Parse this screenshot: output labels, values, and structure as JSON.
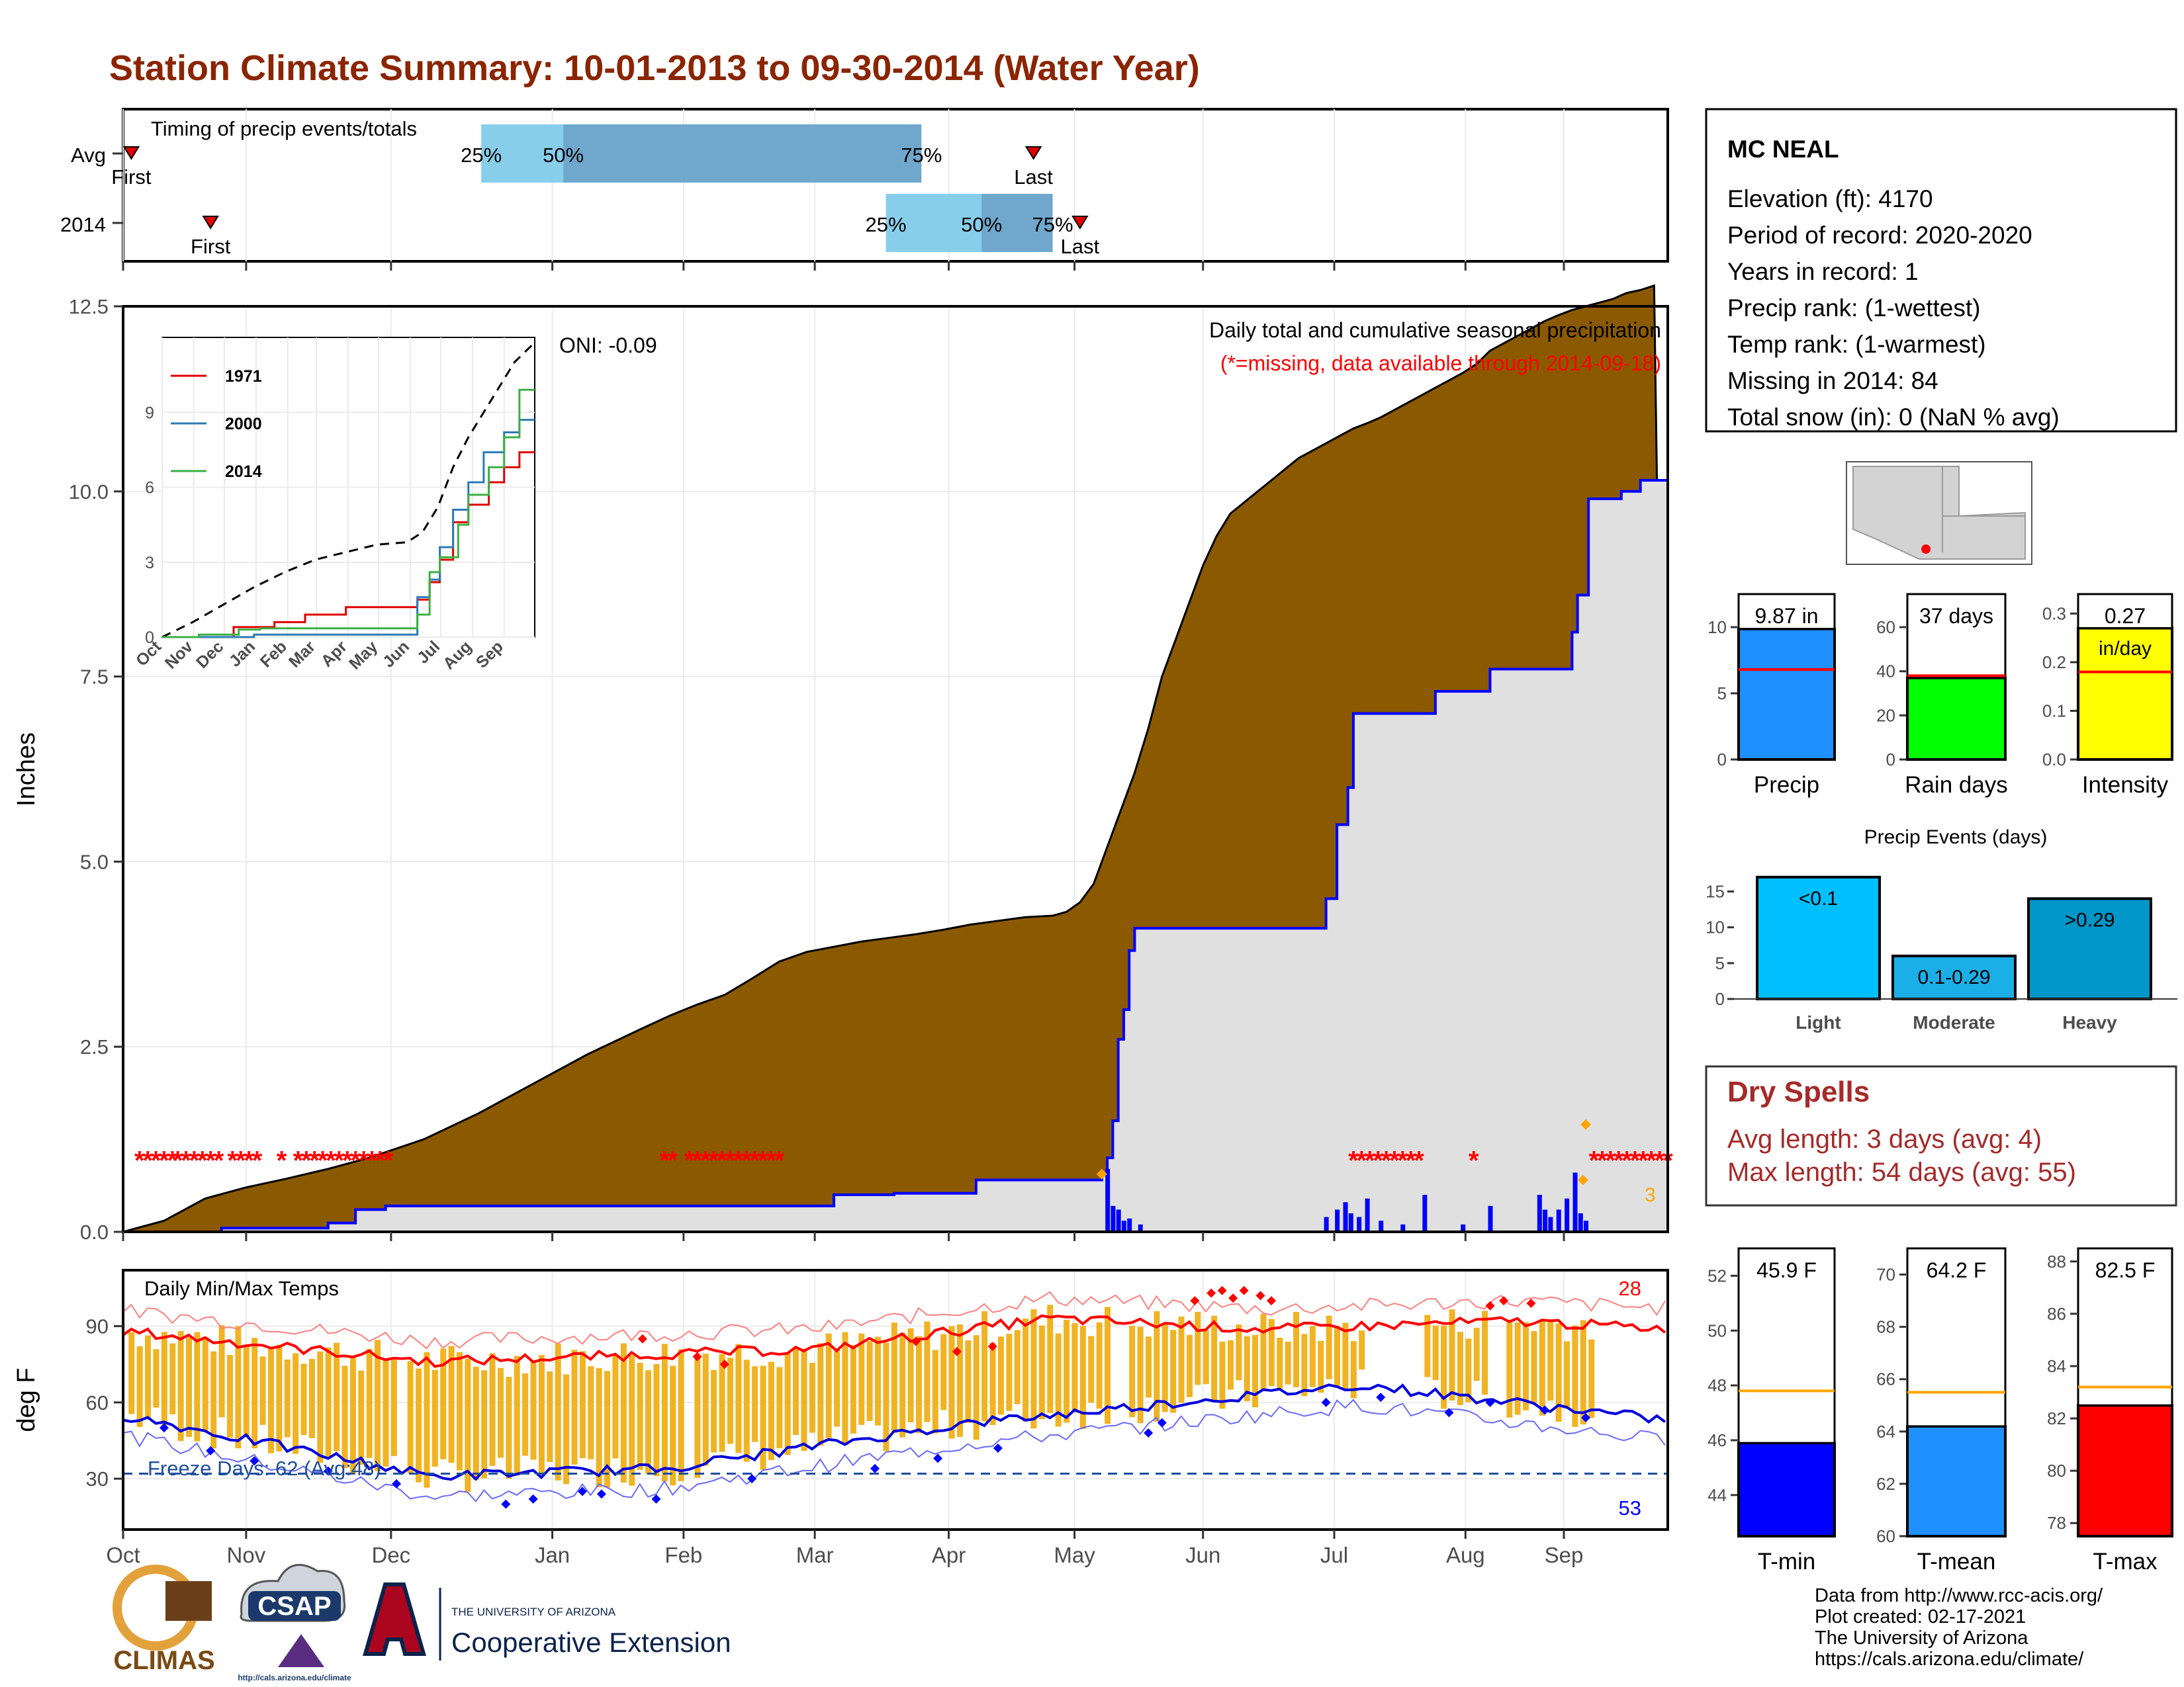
{
  "title": "Station Climate Summary: 10-01-2013 to 09-30-2014 (Water Year)",
  "timing": {
    "label": "Timing of precip events/totals",
    "rows": [
      {
        "label": "Avg",
        "first_doy": 3,
        "first_label": "First",
        "q25": 131,
        "q50": 161,
        "q75": 292,
        "last_doy": 333,
        "last_label": "Last"
      },
      {
        "label": "2014",
        "first_doy": 32,
        "first_label": "First",
        "q25": 279,
        "q50": 314,
        "q75": 340,
        "last_doy": 350,
        "last_label": "Last"
      }
    ],
    "q_labels": [
      "25%",
      "50%",
      "75%"
    ],
    "colors": {
      "light": "#87CEEB",
      "dark": "#6FA7CD",
      "marker": "#E00000"
    }
  },
  "precip_panel": {
    "ylabel": "Inches",
    "yticks": [
      "0.0",
      "2.5",
      "5.0",
      "7.5",
      "10.0",
      "12.5"
    ],
    "ymax": 12.5,
    "caption": "Daily total and cumulative seasonal precipitation",
    "missing_note": "(*=missing, data available through 2014-09-18)",
    "oni": "ONI: -0.09",
    "missing_count": "3",
    "avg_cum": [
      [
        0,
        0
      ],
      [
        15,
        0.15
      ],
      [
        30,
        0.45
      ],
      [
        45,
        0.6
      ],
      [
        60,
        0.72
      ],
      [
        75,
        0.85
      ],
      [
        90,
        1.0
      ],
      [
        110,
        1.25
      ],
      [
        130,
        1.6
      ],
      [
        150,
        2.0
      ],
      [
        170,
        2.4
      ],
      [
        190,
        2.75
      ],
      [
        200,
        2.92
      ],
      [
        210,
        3.07
      ],
      [
        220,
        3.2
      ],
      [
        230,
        3.42
      ],
      [
        240,
        3.65
      ],
      [
        250,
        3.78
      ],
      [
        260,
        3.85
      ],
      [
        270,
        3.92
      ],
      [
        280,
        3.97
      ],
      [
        290,
        4.02
      ],
      [
        300,
        4.08
      ],
      [
        310,
        4.15
      ],
      [
        320,
        4.2
      ],
      [
        330,
        4.25
      ],
      [
        340,
        4.27
      ],
      [
        345,
        4.32
      ],
      [
        350,
        4.45
      ],
      [
        355,
        4.7
      ],
      [
        360,
        5.2
      ],
      [
        365,
        5.7
      ],
      [
        370,
        6.2
      ],
      [
        375,
        6.8
      ],
      [
        380,
        7.5
      ],
      [
        385,
        8.0
      ],
      [
        390,
        8.5
      ],
      [
        395,
        9.0
      ],
      [
        400,
        9.4
      ],
      [
        405,
        9.7
      ],
      [
        410,
        9.85
      ],
      [
        415,
        10.0
      ],
      [
        420,
        10.15
      ],
      [
        425,
        10.3
      ],
      [
        430,
        10.45
      ],
      [
        435,
        10.55
      ],
      [
        440,
        10.65
      ],
      [
        445,
        10.75
      ],
      [
        450,
        10.85
      ],
      [
        455,
        10.92
      ],
      [
        460,
        11.0
      ],
      [
        465,
        11.1
      ],
      [
        470,
        11.2
      ],
      [
        475,
        11.3
      ],
      [
        480,
        11.4
      ],
      [
        485,
        11.5
      ],
      [
        490,
        11.6
      ],
      [
        495,
        11.72
      ],
      [
        500,
        11.9
      ],
      [
        505,
        12.0
      ],
      [
        510,
        12.1
      ],
      [
        515,
        12.2
      ],
      [
        520,
        12.3
      ],
      [
        525,
        12.38
      ],
      [
        530,
        12.45
      ],
      [
        535,
        12.5
      ],
      [
        540,
        12.55
      ],
      [
        545,
        12.6
      ],
      [
        548,
        12.65
      ],
      [
        550,
        12.68
      ],
      [
        555,
        12.72
      ],
      [
        560,
        12.78
      ]
    ],
    "cum_2014": [
      [
        0,
        0
      ],
      [
        36,
        0
      ],
      [
        36,
        0.05
      ],
      [
        75,
        0.05
      ],
      [
        75,
        0.12
      ],
      [
        85,
        0.12
      ],
      [
        85,
        0.3
      ],
      [
        96,
        0.3
      ],
      [
        96,
        0.35
      ],
      [
        260,
        0.35
      ],
      [
        260,
        0.5
      ],
      [
        282,
        0.5
      ],
      [
        282,
        0.52
      ],
      [
        312,
        0.52
      ],
      [
        312,
        0.7
      ],
      [
        358,
        0.7
      ],
      [
        358,
        0.78
      ],
      [
        360,
        0.78
      ],
      [
        360,
        1.0
      ],
      [
        362,
        1.0
      ],
      [
        362,
        1.5
      ],
      [
        364,
        1.5
      ],
      [
        364,
        2.6
      ],
      [
        366,
        2.6
      ],
      [
        366,
        3.0
      ],
      [
        368,
        3.0
      ],
      [
        368,
        3.8
      ],
      [
        370,
        3.8
      ],
      [
        370,
        4.1
      ],
      [
        440,
        4.1
      ],
      [
        440,
        4.5
      ],
      [
        444,
        4.5
      ],
      [
        444,
        5.5
      ],
      [
        448,
        5.5
      ],
      [
        448,
        6.0
      ],
      [
        450,
        6.0
      ],
      [
        450,
        7.0
      ],
      [
        480,
        7.0
      ],
      [
        480,
        7.3
      ],
      [
        500,
        7.3
      ],
      [
        500,
        7.6
      ],
      [
        530,
        7.6
      ],
      [
        530,
        8.1
      ],
      [
        532,
        8.1
      ],
      [
        532,
        8.6
      ],
      [
        536,
        8.6
      ],
      [
        536,
        9.9
      ],
      [
        548,
        9.9
      ],
      [
        548,
        10.0
      ],
      [
        555,
        10.0
      ],
      [
        555,
        10.15
      ],
      [
        565,
        10.15
      ]
    ],
    "daily_bars": [
      [
        360,
        0.85
      ],
      [
        362,
        0.35
      ],
      [
        364,
        0.3
      ],
      [
        366,
        0.15
      ],
      [
        368,
        0.18
      ],
      [
        372,
        0.1
      ],
      [
        440,
        0.2
      ],
      [
        444,
        0.3
      ],
      [
        447,
        0.4
      ],
      [
        449,
        0.25
      ],
      [
        452,
        0.2
      ],
      [
        455,
        0.45
      ],
      [
        460,
        0.15
      ],
      [
        468,
        0.1
      ],
      [
        476,
        0.5
      ],
      [
        490,
        0.1
      ],
      [
        500,
        0.35
      ],
      [
        518,
        0.5
      ],
      [
        520,
        0.3
      ],
      [
        522,
        0.2
      ],
      [
        525,
        0.3
      ],
      [
        528,
        0.45
      ],
      [
        531,
        0.8
      ],
      [
        533,
        0.25
      ],
      [
        535,
        0.15
      ]
    ]
  },
  "inset": {
    "legend": [
      {
        "name": "1971",
        "color": "#E00000"
      },
      {
        "name": "2000",
        "color": "#2C7BB6"
      },
      {
        "name": "2014",
        "color": "#3CB043"
      }
    ],
    "yticks": [
      "0",
      "3",
      "6",
      "9"
    ],
    "months": [
      "Oct",
      "Nov",
      "Dec",
      "Jan",
      "Feb",
      "Mar",
      "Apr",
      "May",
      "Jun",
      "Jul",
      "Aug",
      "Sep"
    ]
  },
  "temp_panel": {
    "ylabel": "deg F",
    "title": "Daily Min/Max Temps",
    "yticks": [
      "30",
      "60",
      "90"
    ],
    "freeze_label": "Freeze Days: 62 (Avg:48)",
    "hot_count": "28",
    "cold_count": "53",
    "freeze_line": 32
  },
  "months": [
    "Oct",
    "Nov",
    "Dec",
    "Jan",
    "Feb",
    "Mar",
    "Apr",
    "May",
    "Jun",
    "Jul",
    "Aug",
    "Sep"
  ],
  "station": {
    "name": "MC NEAL",
    "lines": [
      "Elevation (ft): 4170",
      "Period of record: 2020-2020",
      "Years in record: 1",
      "Precip rank:  (1-wettest)",
      "Temp rank:  (1-warmest)",
      "Missing in 2014: 84",
      "Total snow (in): 0 (NaN % avg)"
    ]
  },
  "small_bars": [
    {
      "name": "Precip",
      "value_label": "9.87 in",
      "value": 9.87,
      "avg": 6.8,
      "ymin": 0,
      "ymax": 12.5,
      "ticks": [
        "0",
        "5",
        "10"
      ],
      "color": "#1E90FF"
    },
    {
      "name": "Rain days",
      "value_label": "37 days",
      "value": 37,
      "avg": 38,
      "ymin": 0,
      "ymax": 75,
      "ticks": [
        "0",
        "20",
        "40",
        "60"
      ],
      "color": "#00FF00"
    },
    {
      "name": "Intensity",
      "value_label": "0.27",
      "unit": "in/day",
      "value": 0.27,
      "avg": 0.18,
      "ymin": 0,
      "ymax": 0.34,
      "ticks": [
        "0.0",
        "0.1",
        "0.2",
        "0.3"
      ],
      "color": "#FFFF00"
    }
  ],
  "events": {
    "title": "Precip Events (days)",
    "ticks": [
      "0",
      "5",
      "10",
      "15"
    ],
    "bars": [
      {
        "cat": "Light",
        "label": "<0.1",
        "value": 17
      },
      {
        "cat": "Moderate",
        "label": "0.1-0.29",
        "value": 6
      },
      {
        "cat": "Heavy",
        "label": ">0.29",
        "value": 14
      }
    ],
    "colors": [
      "#00BFFF",
      "#1CAEE6",
      "#0096C7"
    ]
  },
  "dry_spells": {
    "title": "Dry Spells",
    "avg_line": "Avg length: 3 days (avg: 4)",
    "max_line": "Max length: 54 days (avg: 55)"
  },
  "temp_bars": [
    {
      "name": "T-min",
      "value_label": "45.9 F",
      "value": 45.9,
      "avg": 47.8,
      "ymin": 42.5,
      "ymax": 53,
      "ticks": [
        "44",
        "46",
        "48",
        "50",
        "52"
      ],
      "color": "#0000FF"
    },
    {
      "name": "T-mean",
      "value_label": "64.2 F",
      "value": 64.2,
      "avg": 65.5,
      "ymin": 60,
      "ymax": 71,
      "ticks": [
        "60",
        "62",
        "64",
        "66",
        "68",
        "70"
      ],
      "color": "#1E90FF"
    },
    {
      "name": "T-max",
      "value_label": "82.5 F",
      "value": 82.5,
      "avg": 83.2,
      "ymin": 77.5,
      "ymax": 88.5,
      "ticks": [
        "78",
        "80",
        "82",
        "84",
        "86",
        "88"
      ],
      "color": "#FF0000"
    }
  ],
  "footer": {
    "lines": [
      "Data from http://www.rcc-acis.org/",
      "Plot created: 02-17-2021",
      "The University of Arizona",
      "https://cals.arizona.edu/climate/"
    ],
    "logo_climas": "CLIMAS",
    "logo_csap": "CSAP",
    "csap_url": "http://cals.arizona.edu/climate",
    "ua_top": "THE UNIVERSITY OF ARIZONA",
    "ua_bottom": "Cooperative Extension"
  }
}
